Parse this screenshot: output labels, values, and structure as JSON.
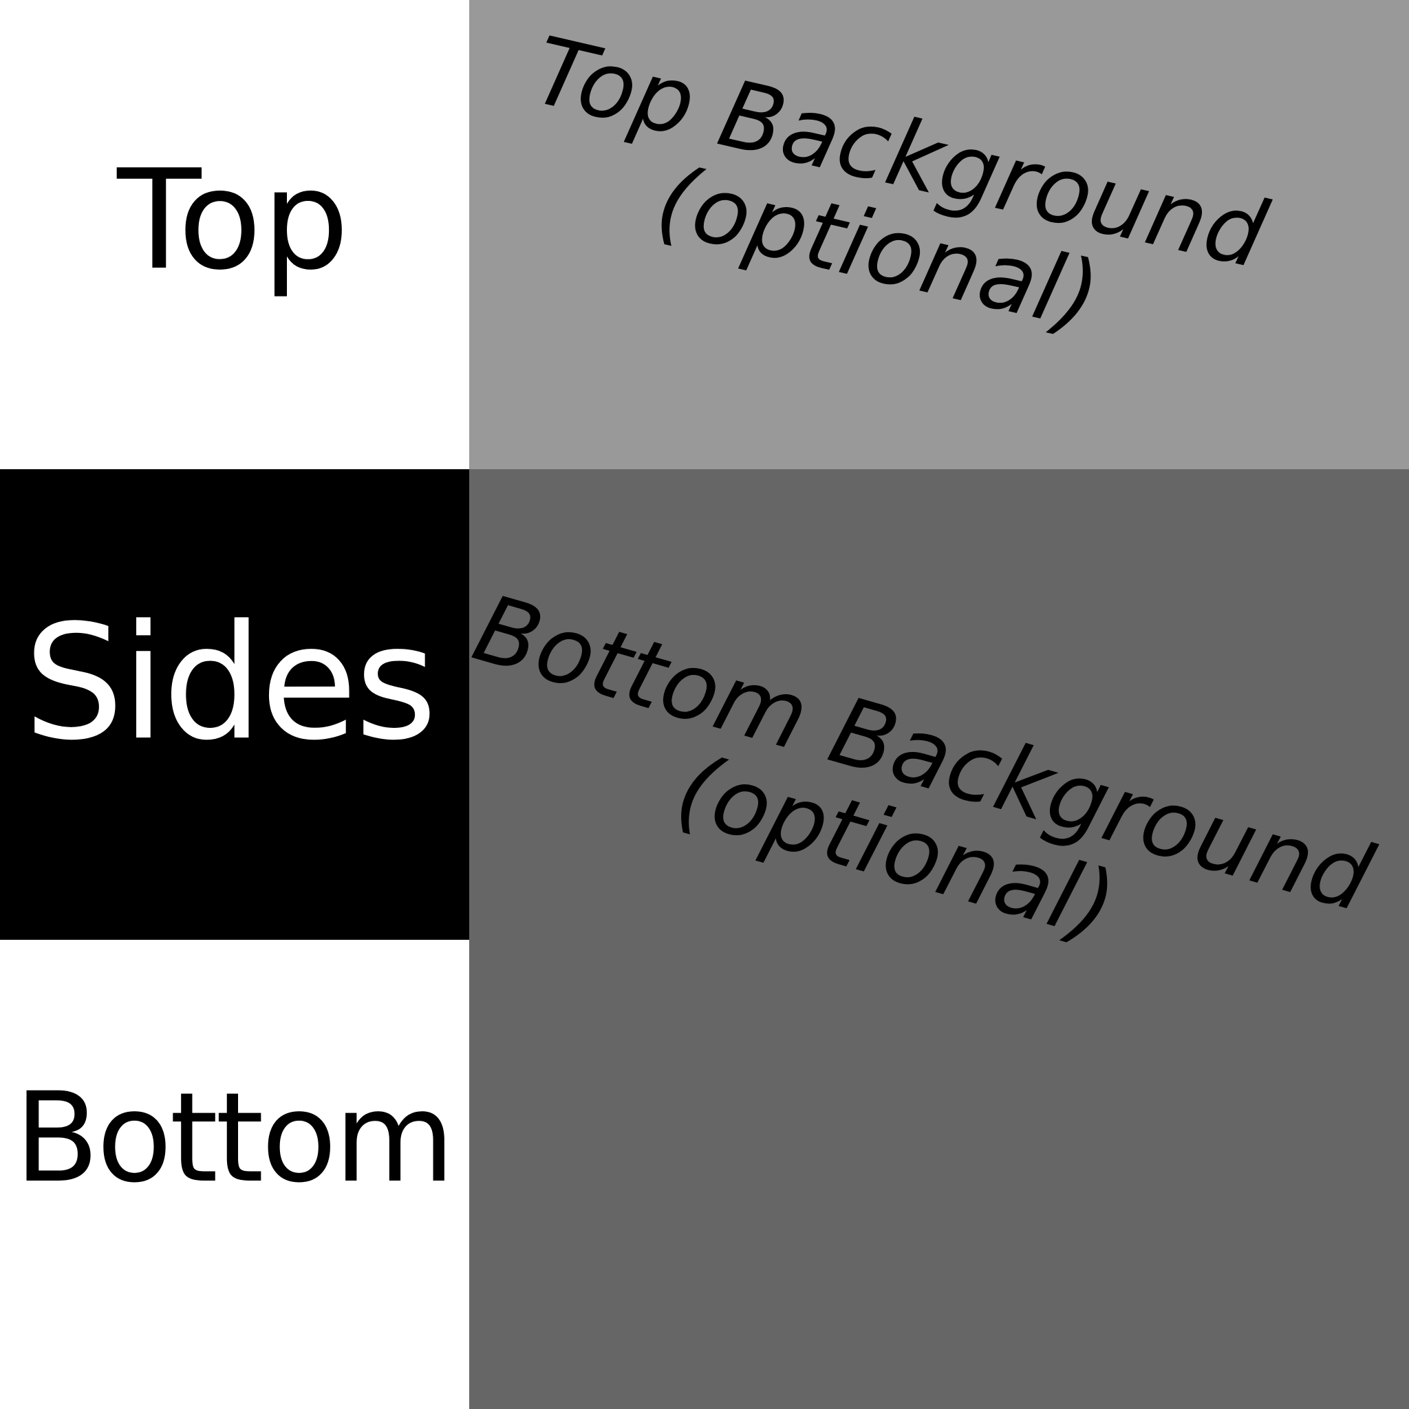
{
  "left_column": {
    "top": {
      "label": "Top",
      "background": "#ffffff",
      "text_color": "#000000"
    },
    "sides": {
      "label": "Sides",
      "background": "#000000",
      "text_color": "#ffffff"
    },
    "bottom": {
      "label": "Bottom",
      "background": "#ffffff",
      "text_color": "#000000"
    }
  },
  "right_column": {
    "top_background": {
      "line1": "Top Background",
      "line2": "(optional)",
      "background": "#999999"
    },
    "bottom_background": {
      "line1": "Bottom Background",
      "line2": "(optional)",
      "background": "#666666"
    }
  }
}
